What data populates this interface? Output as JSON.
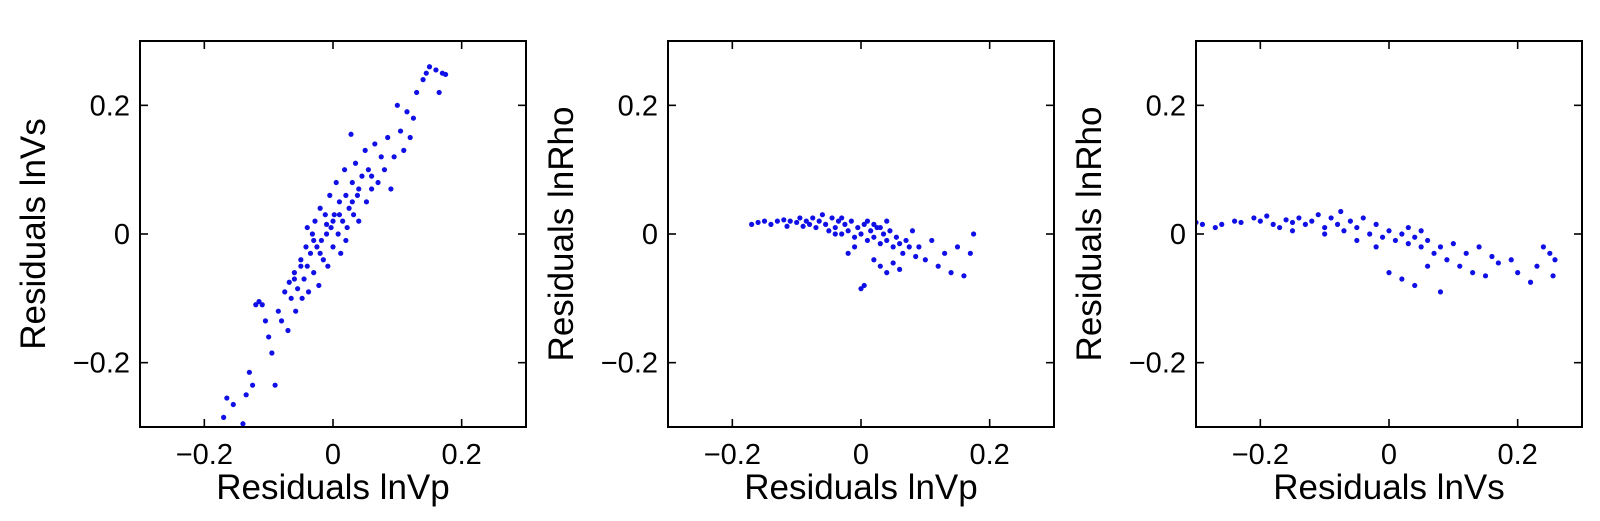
{
  "chart_data": [
    {
      "type": "scatter",
      "xlabel": "Residuals lnVp",
      "ylabel": "Residuals lnVs",
      "xlim": [
        -0.3,
        0.3
      ],
      "ylim": [
        -0.3,
        0.3
      ],
      "xticks": [
        -0.2,
        0,
        0.2
      ],
      "yticks": [
        -0.2,
        0,
        0.2
      ],
      "xtick_labels": [
        "−0.2",
        "0",
        "0.2"
      ],
      "ytick_labels": [
        "−0.2",
        "0",
        "0.2"
      ],
      "color": "#1010e6",
      "series": [
        {
          "points": [
            [
              -0.17,
              -0.285
            ],
            [
              -0.165,
              -0.255
            ],
            [
              -0.155,
              -0.265
            ],
            [
              -0.14,
              -0.295
            ],
            [
              -0.135,
              -0.25
            ],
            [
              -0.13,
              -0.215
            ],
            [
              -0.125,
              -0.235
            ],
            [
              -0.12,
              -0.11
            ],
            [
              -0.115,
              -0.105
            ],
            [
              -0.11,
              -0.11
            ],
            [
              -0.105,
              -0.135
            ],
            [
              -0.1,
              -0.16
            ],
            [
              -0.095,
              -0.185
            ],
            [
              -0.09,
              -0.235
            ],
            [
              -0.085,
              -0.12
            ],
            [
              -0.08,
              -0.135
            ],
            [
              -0.075,
              -0.09
            ],
            [
              -0.07,
              -0.15
            ],
            [
              -0.068,
              -0.075
            ],
            [
              -0.065,
              -0.1
            ],
            [
              -0.06,
              -0.06
            ],
            [
              -0.058,
              -0.12
            ],
            [
              -0.055,
              -0.085
            ],
            [
              -0.05,
              -0.04
            ],
            [
              -0.048,
              -0.1
            ],
            [
              -0.045,
              -0.07
            ],
            [
              -0.042,
              -0.02
            ],
            [
              -0.04,
              -0.05
            ],
            [
              -0.038,
              -0.09
            ],
            [
              -0.035,
              -0.03
            ],
            [
              -0.032,
              0.0
            ],
            [
              -0.03,
              -0.06
            ],
            [
              -0.028,
              0.02
            ],
            [
              -0.025,
              -0.02
            ],
            [
              -0.022,
              -0.08
            ],
            [
              -0.02,
              0.04
            ],
            [
              -0.018,
              -0.01
            ],
            [
              -0.015,
              -0.04
            ],
            [
              -0.012,
              0.03
            ],
            [
              -0.01,
              0.0
            ],
            [
              -0.008,
              -0.05
            ],
            [
              -0.005,
              0.06
            ],
            [
              -0.003,
              0.01
            ],
            [
              0.0,
              -0.02
            ],
            [
              0.002,
              0.03
            ],
            [
              0.005,
              0.08
            ],
            [
              0.008,
              0.0
            ],
            [
              0.01,
              0.05
            ],
            [
              0.012,
              -0.03
            ],
            [
              0.015,
              0.02
            ],
            [
              0.018,
              0.1
            ],
            [
              0.02,
              0.06
            ],
            [
              0.022,
              0.01
            ],
            [
              0.025,
              0.04
            ],
            [
              0.028,
              0.155
            ],
            [
              0.03,
              0.08
            ],
            [
              0.032,
              0.03
            ],
            [
              0.035,
              0.11
            ],
            [
              0.038,
              0.06
            ],
            [
              0.04,
              0.02
            ],
            [
              0.045,
              0.09
            ],
            [
              0.05,
              0.13
            ],
            [
              0.052,
              0.05
            ],
            [
              0.055,
              0.1
            ],
            [
              0.06,
              0.07
            ],
            [
              0.065,
              0.14
            ],
            [
              0.07,
              0.08
            ],
            [
              0.075,
              0.12
            ],
            [
              0.08,
              0.1
            ],
            [
              0.085,
              0.15
            ],
            [
              0.09,
              0.07
            ],
            [
              0.095,
              0.12
            ],
            [
              0.1,
              0.2
            ],
            [
              0.105,
              0.16
            ],
            [
              0.11,
              0.13
            ],
            [
              0.115,
              0.19
            ],
            [
              0.12,
              0.15
            ],
            [
              0.125,
              0.18
            ],
            [
              0.13,
              0.22
            ],
            [
              0.14,
              0.24
            ],
            [
              0.145,
              0.25
            ],
            [
              0.15,
              0.26
            ],
            [
              0.16,
              0.255
            ],
            [
              0.165,
              0.22
            ],
            [
              0.17,
              0.25
            ],
            [
              0.175,
              0.248
            ],
            [
              -0.04,
              0.01
            ],
            [
              -0.02,
              -0.03
            ],
            [
              0.0,
              0.02
            ],
            [
              0.02,
              -0.01
            ],
            [
              -0.03,
              -0.01
            ],
            [
              0.01,
              0.03
            ],
            [
              -0.01,
              0.015
            ],
            [
              0.03,
              0.05
            ],
            [
              -0.05,
              -0.05
            ],
            [
              0.04,
              0.07
            ],
            [
              -0.06,
              -0.07
            ],
            [
              0.06,
              0.09
            ]
          ]
        }
      ]
    },
    {
      "type": "scatter",
      "xlabel": "Residuals lnVp",
      "ylabel": "Residuals lnRho",
      "xlim": [
        -0.3,
        0.3
      ],
      "ylim": [
        -0.3,
        0.3
      ],
      "xticks": [
        -0.2,
        0,
        0.2
      ],
      "yticks": [
        -0.2,
        0,
        0.2
      ],
      "xtick_labels": [
        "−0.2",
        "0",
        "0.2"
      ],
      "ytick_labels": [
        "−0.2",
        "0",
        "0.2"
      ],
      "color": "#1010e6",
      "series": [
        {
          "points": [
            [
              -0.17,
              0.015
            ],
            [
              -0.16,
              0.018
            ],
            [
              -0.15,
              0.02
            ],
            [
              -0.14,
              0.015
            ],
            [
              -0.13,
              0.02
            ],
            [
              -0.12,
              0.022
            ],
            [
              -0.115,
              0.012
            ],
            [
              -0.11,
              0.02
            ],
            [
              -0.1,
              0.018
            ],
            [
              -0.095,
              0.025
            ],
            [
              -0.09,
              0.012
            ],
            [
              -0.085,
              0.02
            ],
            [
              -0.08,
              0.015
            ],
            [
              -0.075,
              0.025
            ],
            [
              -0.07,
              0.01
            ],
            [
              -0.065,
              0.02
            ],
            [
              -0.06,
              0.03
            ],
            [
              -0.055,
              0.015
            ],
            [
              -0.05,
              0.005
            ],
            [
              -0.045,
              0.025
            ],
            [
              -0.04,
              0.01
            ],
            [
              -0.035,
              0.02
            ],
            [
              -0.03,
              0.0
            ],
            [
              -0.025,
              0.015
            ],
            [
              -0.02,
              0.005
            ],
            [
              -0.015,
              0.02
            ],
            [
              -0.01,
              -0.005
            ],
            [
              -0.005,
              0.01
            ],
            [
              0.0,
              0.0
            ],
            [
              0.005,
              0.015
            ],
            [
              0.01,
              -0.01
            ],
            [
              0.015,
              0.005
            ],
            [
              0.02,
              -0.005
            ],
            [
              0.025,
              0.01
            ],
            [
              0.03,
              -0.015
            ],
            [
              0.035,
              0.0
            ],
            [
              0.04,
              -0.01
            ],
            [
              0.045,
              0.005
            ],
            [
              0.05,
              -0.02
            ],
            [
              0.055,
              -0.005
            ],
            [
              0.06,
              -0.015
            ],
            [
              0.065,
              -0.03
            ],
            [
              0.07,
              -0.01
            ],
            [
              0.075,
              -0.02
            ],
            [
              0.08,
              0.005
            ],
            [
              0.085,
              -0.035
            ],
            [
              0.09,
              -0.02
            ],
            [
              0.1,
              -0.04
            ],
            [
              0.11,
              -0.01
            ],
            [
              0.12,
              -0.05
            ],
            [
              0.13,
              -0.03
            ],
            [
              0.14,
              -0.06
            ],
            [
              0.15,
              -0.02
            ],
            [
              0.16,
              -0.065
            ],
            [
              0.17,
              -0.03
            ],
            [
              0.175,
              0.0
            ],
            [
              0.0,
              -0.085
            ],
            [
              0.005,
              -0.08
            ],
            [
              -0.02,
              -0.03
            ],
            [
              0.02,
              -0.04
            ],
            [
              0.03,
              -0.05
            ],
            [
              0.04,
              -0.06
            ],
            [
              0.05,
              -0.045
            ],
            [
              0.06,
              -0.055
            ],
            [
              -0.01,
              -0.02
            ],
            [
              0.01,
              0.02
            ],
            [
              0.02,
              0.015
            ],
            [
              -0.03,
              0.025
            ],
            [
              0.03,
              0.01
            ],
            [
              -0.04,
              0.0
            ],
            [
              0.04,
              0.02
            ]
          ]
        }
      ]
    },
    {
      "type": "scatter",
      "xlabel": "Residuals lnVs",
      "ylabel": "Residuals lnRho",
      "xlim": [
        -0.3,
        0.3
      ],
      "ylim": [
        -0.3,
        0.3
      ],
      "xticks": [
        -0.2,
        0,
        0.2
      ],
      "yticks": [
        -0.2,
        0,
        0.2
      ],
      "xtick_labels": [
        "−0.2",
        "0",
        "0.2"
      ],
      "ytick_labels": [
        "−0.2",
        "0",
        "0.2"
      ],
      "color": "#1010e6",
      "series": [
        {
          "points": [
            [
              -0.3,
              0.018
            ],
            [
              -0.29,
              0.015
            ],
            [
              -0.27,
              0.01
            ],
            [
              -0.26,
              0.015
            ],
            [
              -0.24,
              0.02
            ],
            [
              -0.23,
              0.018
            ],
            [
              -0.21,
              0.025
            ],
            [
              -0.2,
              0.02
            ],
            [
              -0.19,
              0.028
            ],
            [
              -0.18,
              0.015
            ],
            [
              -0.17,
              0.01
            ],
            [
              -0.16,
              0.022
            ],
            [
              -0.15,
              0.018
            ],
            [
              -0.14,
              0.025
            ],
            [
              -0.13,
              0.015
            ],
            [
              -0.12,
              0.02
            ],
            [
              -0.11,
              0.03
            ],
            [
              -0.1,
              0.01
            ],
            [
              -0.09,
              0.025
            ],
            [
              -0.08,
              0.015
            ],
            [
              -0.075,
              0.035
            ],
            [
              -0.07,
              0.005
            ],
            [
              -0.06,
              0.02
            ],
            [
              -0.05,
              0.01
            ],
            [
              -0.04,
              0.025
            ],
            [
              -0.03,
              0.0
            ],
            [
              -0.02,
              0.015
            ],
            [
              -0.01,
              -0.005
            ],
            [
              0.0,
              0.005
            ],
            [
              0.01,
              -0.01
            ],
            [
              0.02,
              0.0
            ],
            [
              0.03,
              -0.015
            ],
            [
              0.04,
              -0.005
            ],
            [
              0.05,
              -0.02
            ],
            [
              0.06,
              -0.01
            ],
            [
              0.07,
              -0.03
            ],
            [
              0.08,
              -0.02
            ],
            [
              0.09,
              -0.04
            ],
            [
              0.1,
              -0.015
            ],
            [
              0.11,
              -0.05
            ],
            [
              0.12,
              -0.03
            ],
            [
              0.13,
              -0.06
            ],
            [
              0.14,
              -0.02
            ],
            [
              0.15,
              -0.065
            ],
            [
              0.16,
              -0.035
            ],
            [
              0.17,
              -0.045
            ],
            [
              0.19,
              -0.04
            ],
            [
              0.2,
              -0.06
            ],
            [
              0.22,
              -0.075
            ],
            [
              0.23,
              -0.05
            ],
            [
              0.24,
              -0.02
            ],
            [
              0.25,
              -0.03
            ],
            [
              0.255,
              -0.065
            ],
            [
              0.258,
              -0.04
            ],
            [
              0.0,
              -0.06
            ],
            [
              0.02,
              -0.07
            ],
            [
              0.04,
              -0.08
            ],
            [
              0.06,
              -0.05
            ],
            [
              -0.02,
              -0.02
            ],
            [
              0.03,
              0.01
            ],
            [
              -0.05,
              -0.01
            ],
            [
              0.05,
              0.005
            ],
            [
              -0.1,
              0.0
            ],
            [
              0.08,
              -0.09
            ],
            [
              -0.15,
              0.005
            ]
          ]
        }
      ]
    }
  ]
}
